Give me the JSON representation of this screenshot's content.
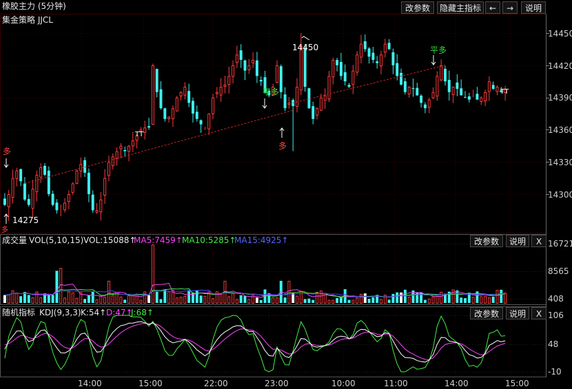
{
  "header": {
    "title": "橡胶主力 (5分钟)",
    "strategy": "集金策略 JJCL",
    "buttons": [
      "改参数",
      "隐藏主指标",
      "←",
      "→",
      "说明"
    ]
  },
  "volume_panel": {
    "label": "成交量",
    "indicator": "VOL(5,10,15)",
    "vol": "VOL:15088↑",
    "ma5": "MA5:7459↑",
    "ma10": "MA10:5285↑",
    "ma15": "MA15:4925↑",
    "buttons": [
      "改参数",
      "说明",
      "X"
    ]
  },
  "kdj_panel": {
    "label": "随机指标",
    "indicator": "KDJ(9,3,3)",
    "k": "K:54↑",
    "d": "D:47↑",
    "j": "J:68↑",
    "buttons": [
      "改参数",
      "说明",
      "X"
    ]
  },
  "annotations": {
    "high": "14450",
    "low": "14275",
    "signals": [
      "多",
      "平多",
      "多",
      "平多"
    ],
    "low_tag": "多"
  },
  "colors": {
    "up": "#ff3b3b",
    "down": "#3ff0ee",
    "ma5": "#ff44ff",
    "ma10": "#44ee44",
    "ma15": "#4444ff",
    "grid": "#3a0000"
  },
  "chart_data": [
    {
      "type": "candlestick",
      "title": "橡胶主力 (5分钟)",
      "x_ticks": [
        "14:00",
        "15:00",
        "22:00",
        "23:00",
        "10:00",
        "11:00",
        "14:00",
        "15:00"
      ],
      "y_ticks": [
        14450,
        14420,
        14390,
        14360,
        14330,
        14300
      ],
      "ylim": [
        14260,
        14455
      ],
      "close_series": [
        14290,
        14300,
        14315,
        14322,
        14312,
        14295,
        14290,
        14305,
        14318,
        14325,
        14318,
        14300,
        14290,
        14285,
        14282,
        14292,
        14300,
        14310,
        14322,
        14328,
        14320,
        14300,
        14285,
        14285,
        14295,
        14315,
        14330,
        14335,
        14340,
        14345,
        14340,
        14345,
        14350,
        14355,
        14360,
        14362,
        14362,
        14420,
        14395,
        14380,
        14370,
        14372,
        14380,
        14390,
        14395,
        14400,
        14385,
        14375,
        14370,
        14365,
        14362,
        14375,
        14390,
        14395,
        14400,
        14402,
        14410,
        14420,
        14430,
        14425,
        14415,
        14420,
        14425,
        14410,
        14405,
        14395,
        14392,
        14400,
        14420,
        14395,
        14380,
        14385,
        14382,
        14400,
        14438,
        14400,
        14380,
        14370,
        14380,
        14390,
        14392,
        14410,
        14425,
        14420,
        14410,
        14405,
        14400,
        14415,
        14430,
        14440,
        14435,
        14428,
        14425,
        14422,
        14430,
        14440,
        14435,
        14420,
        14410,
        14402,
        14395,
        14400,
        14398,
        14392,
        14385,
        14380,
        14388,
        14395,
        14410,
        14420,
        14405,
        14395,
        14400,
        14398,
        14392,
        14390,
        14388,
        14392,
        14388,
        14390,
        14395,
        14405,
        14398,
        14400,
        14395,
        14398
      ],
      "annotations": {
        "high": 14450,
        "low": 14275
      }
    },
    {
      "type": "bar",
      "title": "VOL(5,10,15)",
      "y_ticks": [
        16721,
        8565,
        408
      ],
      "ylim": [
        408,
        16721
      ],
      "latest": {
        "VOL": 15088,
        "MA5": 7459,
        "MA10": 5285,
        "MA15": 4925
      }
    },
    {
      "type": "line",
      "title": "KDJ(9,3,3)",
      "y_ticks": [
        106,
        48,
        -10
      ],
      "ylim": [
        -10,
        106
      ],
      "latest": {
        "K": 54,
        "D": 47,
        "J": 68
      }
    }
  ]
}
